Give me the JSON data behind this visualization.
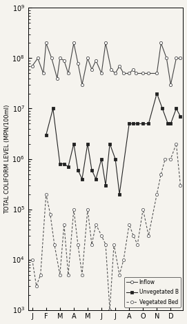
{
  "title": "",
  "ylabel": "TOTAL COLIFORM LEVEL (MPN/100ml)",
  "xlabel": "",
  "months": [
    "J",
    "F",
    "M",
    "A",
    "M",
    "J",
    "J",
    "A",
    "O",
    "N",
    "D"
  ],
  "month_positions": [
    0,
    1,
    2,
    3,
    4,
    5,
    6,
    7,
    8,
    9,
    10
  ],
  "ylim_low": 1000.0,
  "ylim_high": 1000000000.0,
  "inflow": {
    "x": [
      0,
      0.4,
      0.8,
      1.0,
      1.4,
      1.8,
      2.0,
      2.3,
      2.6,
      3.0,
      3.3,
      3.6,
      4.0,
      4.3,
      4.6,
      5.0,
      5.3,
      5.7,
      6.0,
      6.3,
      6.6,
      7.0,
      7.3,
      7.5,
      8.0,
      8.4,
      9.0,
      9.3,
      9.7,
      10.0,
      10.4,
      10.7
    ],
    "y": [
      70000000.0,
      100000000.0,
      50000000.0,
      200000000.0,
      100000000.0,
      40000000.0,
      100000000.0,
      90000000.0,
      50000000.0,
      200000000.0,
      80000000.0,
      30000000.0,
      100000000.0,
      60000000.0,
      90000000.0,
      50000000.0,
      200000000.0,
      60000000.0,
      50000000.0,
      70000000.0,
      50000000.0,
      50000000.0,
      60000000.0,
      50000000.0,
      50000000.0,
      50000000.0,
      50000000.0,
      200000000.0,
      100000000.0,
      30000000.0,
      100000000.0,
      100000000.0
    ],
    "label": "Inflow",
    "color": "#444444",
    "linestyle": "-",
    "marker": "o",
    "markersize": 3,
    "markerfacecolor": "white",
    "linewidth": 0.8
  },
  "unvegetated": {
    "x": [
      1.0,
      1.5,
      2.0,
      2.3,
      2.6,
      3.0,
      3.3,
      3.6,
      4.0,
      4.3,
      4.6,
      5.0,
      5.3,
      5.6,
      6.0,
      6.3,
      7.0,
      7.3,
      7.6,
      8.0,
      8.4,
      9.0,
      9.4,
      9.8,
      10.0,
      10.4,
      10.7
    ],
    "y": [
      3000000.0,
      10000000.0,
      800000.0,
      800000.0,
      700000.0,
      2000000.0,
      600000.0,
      400000.0,
      2000000.0,
      600000.0,
      400000.0,
      1000000.0,
      300000.0,
      2000000.0,
      1000000.0,
      200000.0,
      5000000.0,
      5000000.0,
      5000000.0,
      5000000.0,
      5000000.0,
      20000000.0,
      10000000.0,
      5000000.0,
      5000000.0,
      10000000.0,
      7000000.0
    ],
    "label": "Unvegetated B",
    "color": "#222222",
    "linestyle": "-",
    "marker": "s",
    "markersize": 3,
    "markerfacecolor": "#222222",
    "linewidth": 0.8
  },
  "vegetated": {
    "x": [
      0,
      0.3,
      0.6,
      1.0,
      1.3,
      1.6,
      2.0,
      2.3,
      2.6,
      3.0,
      3.3,
      3.6,
      4.0,
      4.3,
      4.6,
      5.0,
      5.3,
      5.6,
      5.9,
      6.3,
      6.6,
      7.0,
      7.3,
      7.6,
      8.0,
      8.4,
      9.0,
      9.3,
      9.6,
      10.0,
      10.4,
      10.7
    ],
    "y": [
      10000.0,
      3000.0,
      5000.0,
      200000.0,
      80000.0,
      20000.0,
      5000.0,
      50000.0,
      5000.0,
      100000.0,
      20000.0,
      5000.0,
      100000.0,
      20000.0,
      50000.0,
      30000.0,
      20000.0,
      1000.0,
      20000.0,
      5000.0,
      10000.0,
      50000.0,
      30000.0,
      20000.0,
      100000.0,
      30000.0,
      200000.0,
      500000.0,
      1000000.0,
      1000000.0,
      2000000.0,
      300000.0
    ],
    "label": "Vegetated Bed",
    "color": "#555555",
    "linestyle": "--",
    "marker": "o",
    "markersize": 3,
    "markerfacecolor": "white",
    "linewidth": 0.8
  },
  "background_color": "#f5f3ee",
  "legend_loc": "lower right",
  "legend_fontsize": 5.5,
  "ylabel_fontsize": 6.0,
  "tick_fontsize": 7
}
